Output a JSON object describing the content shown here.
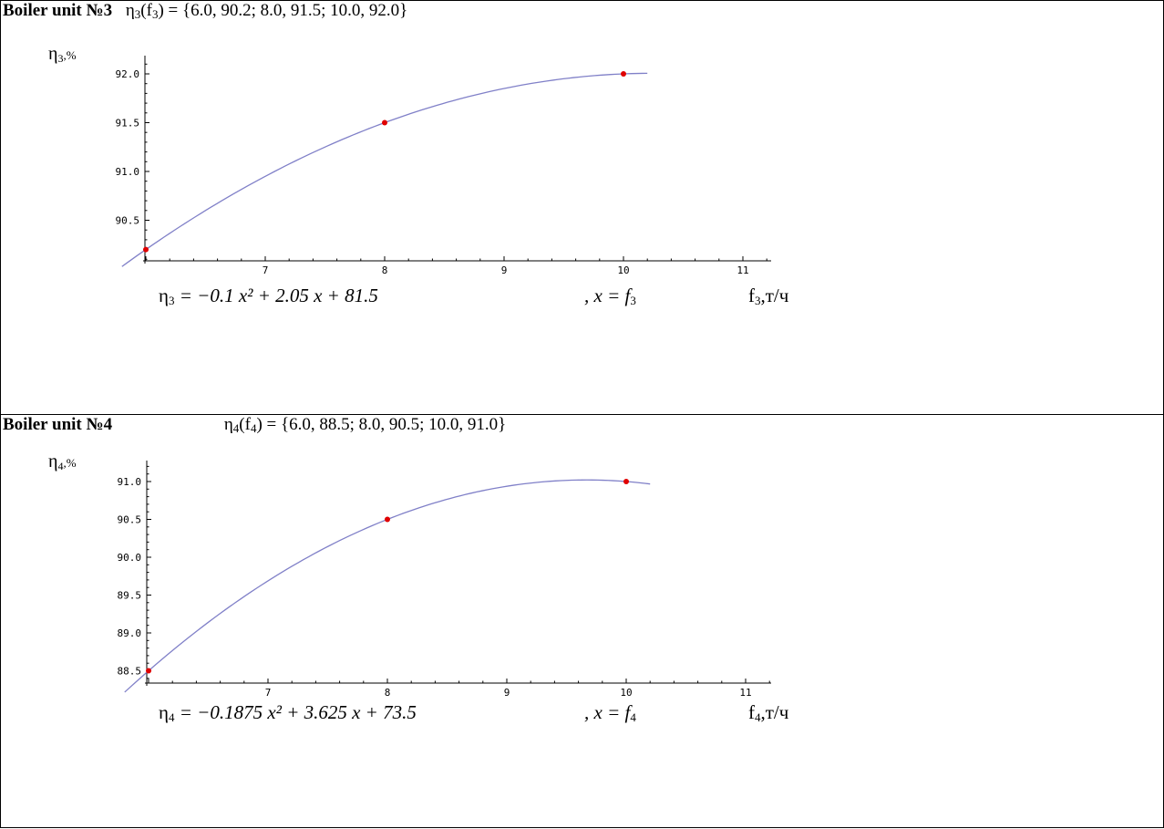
{
  "panels": [
    {
      "title": "Boiler unit №3",
      "formula_prefix": "η",
      "formula_sub": "3",
      "formula_arg": "(f",
      "formula_arg_sub": "3",
      "formula_rest": ") = {6.0, 90.2; 8.0, 91.5; 10.0, 92.0}",
      "eq_lhs": "η",
      "eq_lhs_sub": "3",
      "eq_rhs": "=   −0.1 x² + 2.05 x + 81.5",
      "eq_x": ",   x = f",
      "eq_x_sub": "3",
      "y_unit_label": "η",
      "y_unit_sub": "3",
      "y_unit_suffix": ",%",
      "x_unit_label": "f",
      "x_unit_sub": "3",
      "x_unit_suffix": ",т/ч"
    },
    {
      "title": "Boiler unit №4",
      "formula_prefix": "η",
      "formula_sub": "4",
      "formula_arg": "(f",
      "formula_arg_sub": "4",
      "formula_rest": ") = {6.0, 88.5; 8.0, 90.5; 10.0, 91.0}",
      "eq_lhs": "η",
      "eq_lhs_sub": "4",
      "eq_rhs": "=   −0.1875 x² + 3.625 x + 73.5",
      "eq_x": ",   x = f",
      "eq_x_sub": "4",
      "y_unit_label": "η",
      "y_unit_sub": "4",
      "y_unit_suffix": ",%",
      "x_unit_label": "f",
      "x_unit_sub": "4",
      "x_unit_suffix": ",т/ч"
    }
  ],
  "chart_data": [
    {
      "type": "line",
      "points": {
        "x": [
          6.0,
          8.0,
          10.0
        ],
        "y": [
          90.2,
          91.5,
          92.0
        ]
      },
      "fit": {
        "a": -0.1,
        "b": 2.05,
        "c": 81.5
      },
      "x_range": [
        5.8,
        10.2
      ],
      "xlim": [
        6.0,
        11.2
      ],
      "ylim": [
        90.05,
        92.1
      ],
      "xticks": [
        "7",
        "8",
        "9",
        "10",
        "11"
      ],
      "yticks": [
        "90.5",
        "91.0",
        "91.5",
        "92.0"
      ],
      "line_color": "#8080c8",
      "point_color": "#e00000"
    },
    {
      "type": "line",
      "points": {
        "x": [
          6.0,
          8.0,
          10.0
        ],
        "y": [
          88.5,
          90.5,
          91.0
        ]
      },
      "fit": {
        "a": -0.1875,
        "b": 3.625,
        "c": 73.5
      },
      "x_range": [
        5.8,
        10.2
      ],
      "xlim": [
        6.0,
        11.2
      ],
      "ylim": [
        88.3,
        91.15
      ],
      "xticks": [
        "7",
        "8",
        "9",
        "10",
        "11"
      ],
      "yticks": [
        "88.5",
        "89.0",
        "89.5",
        "90.0",
        "90.5",
        "91.0"
      ],
      "line_color": "#8080c8",
      "point_color": "#e00000"
    }
  ]
}
